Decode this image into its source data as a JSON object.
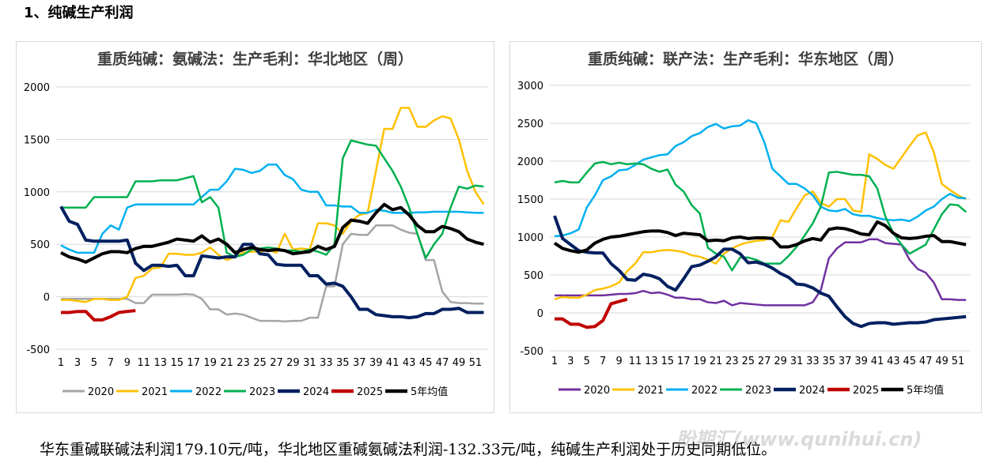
{
  "heading": "1、纯碱生产利润",
  "chart_data": [
    {
      "type": "line",
      "title": "重质纯碱：氨碱法：生产毛利：华北地区（周）",
      "categories": [
        1,
        null,
        3,
        null,
        5,
        null,
        7,
        null,
        9,
        null,
        11,
        null,
        13,
        null,
        15,
        null,
        17,
        null,
        19,
        null,
        21,
        null,
        23,
        null,
        25,
        null,
        27,
        null,
        29,
        null,
        31,
        null,
        33,
        null,
        35,
        null,
        37,
        null,
        39,
        null,
        41,
        null,
        43,
        null,
        45,
        null,
        47,
        null,
        49,
        null,
        51,
        null
      ],
      "ylim": [
        -500,
        2000
      ],
      "yticks": [
        -500,
        0,
        500,
        1000,
        1500,
        2000
      ],
      "grid": true,
      "series": [
        {
          "name": "2020",
          "color": "#a5a5a5",
          "values": [
            -20,
            -20,
            -20,
            -20,
            -20,
            -20,
            -20,
            -20,
            -20,
            -60,
            -60,
            20,
            20,
            20,
            20,
            25,
            20,
            -20,
            -120,
            -120,
            -170,
            -160,
            -170,
            -200,
            -230,
            -230,
            -230,
            -235,
            -230,
            -230,
            -200,
            -200,
            100,
            100,
            500,
            600,
            590,
            590,
            680,
            680,
            680,
            640,
            610,
            600,
            350,
            350,
            50,
            -50,
            -60,
            -60,
            -65,
            -65
          ]
        },
        {
          "name": "2021",
          "color": "#ffc000",
          "values": [
            -30,
            -30,
            -40,
            -50,
            -20,
            -20,
            -30,
            -30,
            0,
            180,
            200,
            270,
            280,
            410,
            410,
            400,
            400,
            420,
            470,
            400,
            350,
            380,
            420,
            430,
            430,
            450,
            420,
            600,
            450,
            460,
            450,
            700,
            700,
            680,
            600,
            720,
            780,
            800,
            1200,
            1600,
            1600,
            1800,
            1800,
            1620,
            1620,
            1680,
            1720,
            1700,
            1500,
            1200,
            1000,
            880
          ]
        },
        {
          "name": "2022",
          "color": "#00b0f0",
          "values": [
            490,
            450,
            420,
            420,
            420,
            600,
            680,
            640,
            850,
            880,
            880,
            880,
            880,
            880,
            880,
            880,
            880,
            950,
            1020,
            1020,
            1100,
            1220,
            1210,
            1180,
            1200,
            1260,
            1260,
            1160,
            1120,
            1020,
            1000,
            1000,
            870,
            870,
            860,
            860,
            800,
            800,
            830,
            820,
            800,
            800,
            800,
            805,
            805,
            810,
            810,
            810,
            810,
            805,
            800,
            800
          ]
        },
        {
          "name": "2023",
          "color": "#00b050",
          "values": [
            850,
            850,
            850,
            850,
            950,
            950,
            950,
            950,
            950,
            1100,
            1100,
            1100,
            1110,
            1110,
            1110,
            1130,
            1150,
            900,
            950,
            850,
            420,
            380,
            400,
            450,
            460,
            470,
            460,
            440,
            440,
            430,
            450,
            430,
            400,
            500,
            1320,
            1490,
            1470,
            1450,
            1440,
            1320,
            1200,
            1050,
            850,
            600,
            370,
            500,
            600,
            850,
            1050,
            1030,
            1060,
            1050
          ]
        },
        {
          "name": "2024",
          "color": "#002060",
          "values": [
            860,
            720,
            690,
            540,
            530,
            530,
            530,
            530,
            540,
            320,
            250,
            300,
            300,
            290,
            300,
            200,
            200,
            390,
            380,
            370,
            380,
            380,
            500,
            500,
            410,
            400,
            310,
            300,
            300,
            300,
            200,
            200,
            120,
            130,
            100,
            0,
            -120,
            -120,
            -170,
            -180,
            -190,
            -190,
            -200,
            -190,
            -160,
            -160,
            -120,
            -120,
            -110,
            -150,
            -150,
            -150
          ]
        },
        {
          "name": "2025",
          "color": "#c00000",
          "values": [
            -150,
            -150,
            -140,
            -140,
            -220,
            -220,
            -190,
            -150,
            -140,
            -132.33,
            null,
            null,
            null,
            null,
            null,
            null,
            null,
            null,
            null,
            null,
            null,
            null,
            null,
            null,
            null,
            null,
            null,
            null,
            null,
            null,
            null,
            null,
            null,
            null,
            null,
            null,
            null,
            null,
            null,
            null,
            null,
            null,
            null,
            null,
            null,
            null,
            null,
            null,
            null,
            null,
            null,
            null
          ]
        },
        {
          "name": "5年均值",
          "color": "#000000",
          "values": [
            420,
            380,
            360,
            330,
            370,
            410,
            430,
            430,
            420,
            460,
            480,
            480,
            500,
            520,
            550,
            540,
            530,
            580,
            520,
            550,
            500,
            420,
            450,
            470,
            450,
            440,
            450,
            440,
            410,
            420,
            430,
            480,
            450,
            480,
            660,
            730,
            720,
            700,
            800,
            880,
            830,
            850,
            780,
            680,
            620,
            620,
            670,
            650,
            620,
            550,
            520,
            500
          ]
        }
      ]
    },
    {
      "type": "line",
      "title": "重质纯碱：联产法：生产毛利：华东地区（周）",
      "categories": [
        1,
        null,
        3,
        null,
        5,
        null,
        7,
        null,
        9,
        null,
        11,
        null,
        13,
        null,
        15,
        null,
        17,
        null,
        19,
        null,
        21,
        null,
        23,
        null,
        25,
        null,
        27,
        null,
        29,
        null,
        31,
        null,
        33,
        null,
        35,
        null,
        37,
        null,
        39,
        null,
        41,
        null,
        43,
        null,
        45,
        null,
        47,
        null,
        49,
        null,
        51,
        null
      ],
      "ylim": [
        -500,
        3000
      ],
      "yticks": [
        -500,
        0,
        500,
        1000,
        1500,
        2000,
        2500,
        3000
      ],
      "grid": true,
      "series": [
        {
          "name": "2020",
          "color": "#7030a0",
          "values": [
            230,
            230,
            230,
            230,
            230,
            230,
            230,
            240,
            250,
            250,
            260,
            290,
            260,
            270,
            240,
            200,
            200,
            180,
            180,
            140,
            130,
            160,
            100,
            130,
            120,
            110,
            100,
            100,
            100,
            100,
            100,
            100,
            140,
            300,
            720,
            850,
            930,
            930,
            930,
            970,
            970,
            920,
            910,
            900,
            700,
            580,
            530,
            400,
            180,
            180,
            170,
            170
          ]
        },
        {
          "name": "2021",
          "color": "#ffc000",
          "values": [
            180,
            210,
            200,
            200,
            240,
            300,
            320,
            350,
            400,
            550,
            650,
            800,
            800,
            820,
            830,
            820,
            800,
            760,
            740,
            700,
            650,
            780,
            850,
            900,
            930,
            950,
            960,
            1000,
            1220,
            1200,
            1380,
            1550,
            1600,
            1450,
            1400,
            1500,
            1500,
            1350,
            1330,
            2090,
            2030,
            1950,
            1900,
            2050,
            2200,
            2340,
            2380,
            2120,
            1700,
            1620,
            1550,
            1500
          ]
        },
        {
          "name": "2022",
          "color": "#00b0f0",
          "values": [
            1010,
            1020,
            1050,
            1100,
            1390,
            1550,
            1750,
            1800,
            1880,
            1890,
            1950,
            2020,
            2050,
            2080,
            2090,
            2200,
            2250,
            2330,
            2370,
            2450,
            2490,
            2430,
            2460,
            2470,
            2540,
            2500,
            2250,
            1900,
            1800,
            1700,
            1700,
            1640,
            1550,
            1400,
            1350,
            1340,
            1370,
            1300,
            1280,
            1280,
            1250,
            1230,
            1220,
            1230,
            1210,
            1270,
            1350,
            1400,
            1500,
            1570,
            1520,
            1510
          ]
        },
        {
          "name": "2023",
          "color": "#00b050",
          "values": [
            1720,
            1740,
            1720,
            1720,
            1850,
            1970,
            1990,
            1960,
            1980,
            1960,
            1970,
            1960,
            1900,
            1860,
            1890,
            1690,
            1600,
            1420,
            1310,
            860,
            780,
            740,
            560,
            730,
            730,
            700,
            650,
            650,
            650,
            750,
            870,
            1020,
            1180,
            1400,
            1850,
            1860,
            1840,
            1820,
            1820,
            1800,
            1640,
            1270,
            1050,
            900,
            780,
            840,
            900,
            1100,
            1300,
            1430,
            1420,
            1330
          ]
        },
        {
          "name": "2024",
          "color": "#002060",
          "values": [
            1280,
            980,
            900,
            820,
            800,
            790,
            790,
            650,
            560,
            440,
            430,
            510,
            490,
            450,
            350,
            300,
            450,
            610,
            630,
            680,
            740,
            840,
            840,
            780,
            660,
            670,
            640,
            590,
            520,
            470,
            380,
            370,
            330,
            260,
            220,
            80,
            -50,
            -140,
            -180,
            -140,
            -130,
            -130,
            -150,
            -140,
            -130,
            -130,
            -120,
            -90,
            -80,
            -70,
            -60,
            -50
          ]
        },
        {
          "name": "2025",
          "color": "#c00000",
          "values": [
            -80,
            -80,
            -150,
            -150,
            -190,
            -180,
            -100,
            120,
            150,
            179.1,
            null,
            null,
            null,
            null,
            null,
            null,
            null,
            null,
            null,
            null,
            null,
            null,
            null,
            null,
            null,
            null,
            null,
            null,
            null,
            null,
            null,
            null,
            null,
            null,
            null,
            null,
            null,
            null,
            null,
            null,
            null,
            null,
            null,
            null,
            null,
            null,
            null,
            null,
            null,
            null,
            null,
            null
          ]
        },
        {
          "name": "5年均值",
          "color": "#000000",
          "values": [
            920,
            850,
            820,
            800,
            830,
            920,
            970,
            1000,
            1010,
            1030,
            1050,
            1070,
            1080,
            1080,
            1060,
            1020,
            1050,
            1040,
            1030,
            950,
            960,
            950,
            990,
            1000,
            980,
            990,
            990,
            980,
            870,
            870,
            900,
            950,
            980,
            960,
            1100,
            1120,
            1110,
            1080,
            1040,
            1030,
            1200,
            1150,
            1050,
            990,
            980,
            990,
            1010,
            1020,
            940,
            940,
            920,
            900
          ]
        }
      ]
    }
  ],
  "summary": "华东重碱联碱法利润179.10元/吨，华北地区重碱氨碱法利润-132.33元/吨，纯碱生产利润处于历史同期低位。",
  "watermark": "盼期汇(www.qunihui.cn)"
}
